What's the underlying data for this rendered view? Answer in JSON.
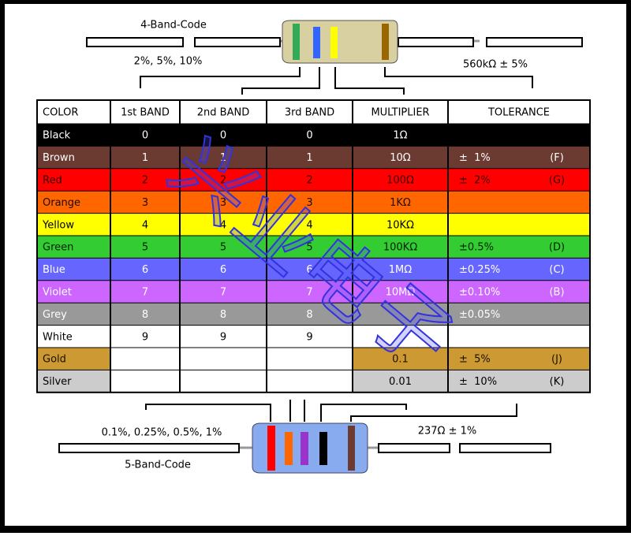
{
  "header": {
    "title_4": "4-Band-Code",
    "tol_4": "2%, 5%, 10%",
    "value_4": "560kΩ ± 5%",
    "title_5": "5-Band-Code",
    "tol_5": "0.1%, 0.25%, 0.5%, 1%",
    "value_5": "237Ω ± 1%"
  },
  "table": {
    "columns": [
      "COLOR",
      "1st BAND",
      "2nd BAND",
      "3rd BAND",
      "MULTIPLIER",
      "TOLERANCE"
    ],
    "rows": [
      {
        "cells": [
          "Black",
          "0",
          "0",
          "0",
          "1Ω",
          null,
          null
        ],
        "color": "#000000",
        "text": "#ffffff"
      },
      {
        "cells": [
          "Brown",
          "1",
          "1",
          "1",
          "10Ω",
          "±  1%",
          "(F)"
        ],
        "color": "#6b3a30",
        "text": "#ffffff"
      },
      {
        "cells": [
          "Red",
          "2",
          "2",
          "2",
          "100Ω",
          "±  2%",
          "(G)"
        ],
        "color": "#ff0000",
        "text": "#3a0000"
      },
      {
        "cells": [
          "Orange",
          "3",
          "3",
          "3",
          "1KΩ",
          null,
          null
        ],
        "color": "#ff6600",
        "text": "#1a0a00"
      },
      {
        "cells": [
          "Yellow",
          "4",
          "4",
          "4",
          "10KΩ",
          null,
          null
        ],
        "color": "#ffff00",
        "text": "#000000"
      },
      {
        "cells": [
          "Green",
          "5",
          "5",
          "5",
          "100KΩ",
          "±0.5%",
          "(D)"
        ],
        "color": "#33cc33",
        "text": "#002200"
      },
      {
        "cells": [
          "Blue",
          "6",
          "6",
          "6",
          "1MΩ",
          "±0.25%",
          "(C)"
        ],
        "color": "#6666ff",
        "text": "#ffffff"
      },
      {
        "cells": [
          "Violet",
          "7",
          "7",
          "7",
          "10MΩ",
          "±0.10%",
          "(B)"
        ],
        "color": "#cc66ff",
        "text": "#ffffff"
      },
      {
        "cells": [
          "Grey",
          "8",
          "8",
          "8",
          null,
          "±0.05%",
          null
        ],
        "color": "#999999",
        "text": "#ffffff"
      },
      {
        "cells": [
          "White",
          "9",
          "9",
          "9",
          null,
          null,
          null
        ],
        "color": "#ffffff",
        "text": "#000000"
      },
      {
        "cells": [
          "Gold",
          null,
          null,
          null,
          "0.1",
          "±  5%",
          "(J)"
        ],
        "color": "#cc9933",
        "text": "#1a1000"
      },
      {
        "cells": [
          "Silver",
          null,
          null,
          null,
          "0.01",
          "±  10%",
          "(K)"
        ],
        "color": "#cccccc",
        "text": "#000000"
      }
    ]
  },
  "watermark": [
    "兴",
    "业",
    "电",
    "子"
  ]
}
